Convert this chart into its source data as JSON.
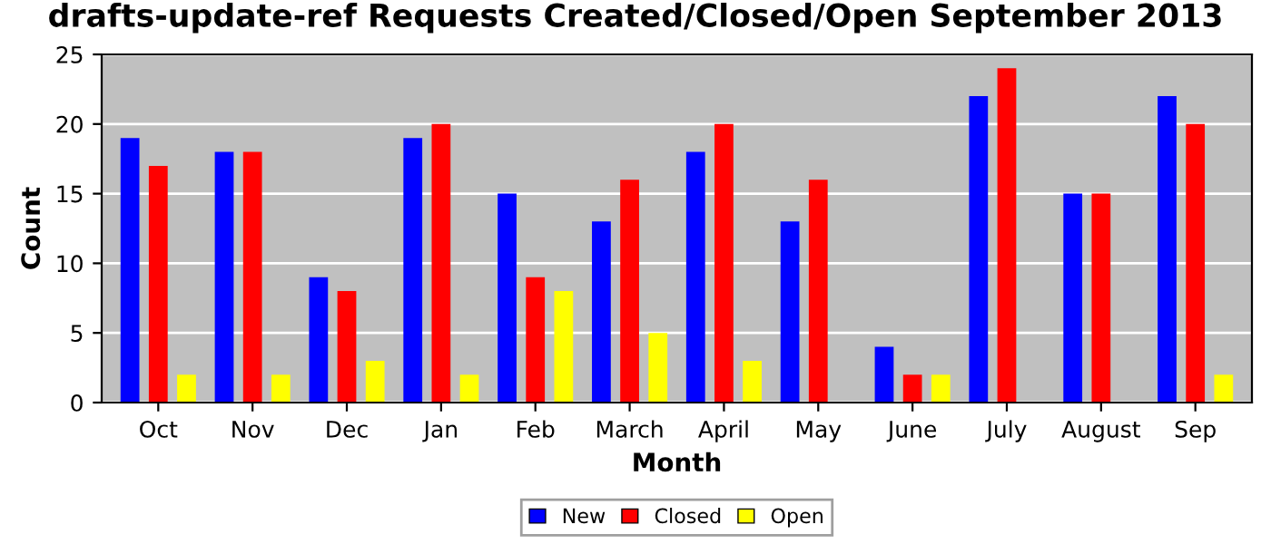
{
  "chart_data": {
    "type": "bar",
    "title": "drafts-update-ref Requests Created/Closed/Open September 2013",
    "xlabel": "Month",
    "ylabel": "Count",
    "categories": [
      "Oct",
      "Nov",
      "Dec",
      "Jan",
      "Feb",
      "March",
      "April",
      "May",
      "June",
      "July",
      "August",
      "Sep"
    ],
    "series": [
      {
        "name": "New",
        "color": "#0000ff",
        "values": [
          19,
          18,
          9,
          19,
          15,
          13,
          18,
          13,
          4,
          22,
          15,
          22
        ]
      },
      {
        "name": "Closed",
        "color": "#ff0000",
        "values": [
          17,
          18,
          8,
          20,
          9,
          16,
          20,
          16,
          2,
          24,
          15,
          20
        ]
      },
      {
        "name": "Open",
        "color": "#ffff00",
        "values": [
          2,
          2,
          3,
          2,
          8,
          5,
          3,
          0,
          2,
          0,
          0,
          2
        ]
      }
    ],
    "ylim": [
      0,
      25
    ],
    "yticks": [
      0,
      5,
      10,
      15,
      20,
      25
    ],
    "grid": "y",
    "legend": "bottom"
  }
}
